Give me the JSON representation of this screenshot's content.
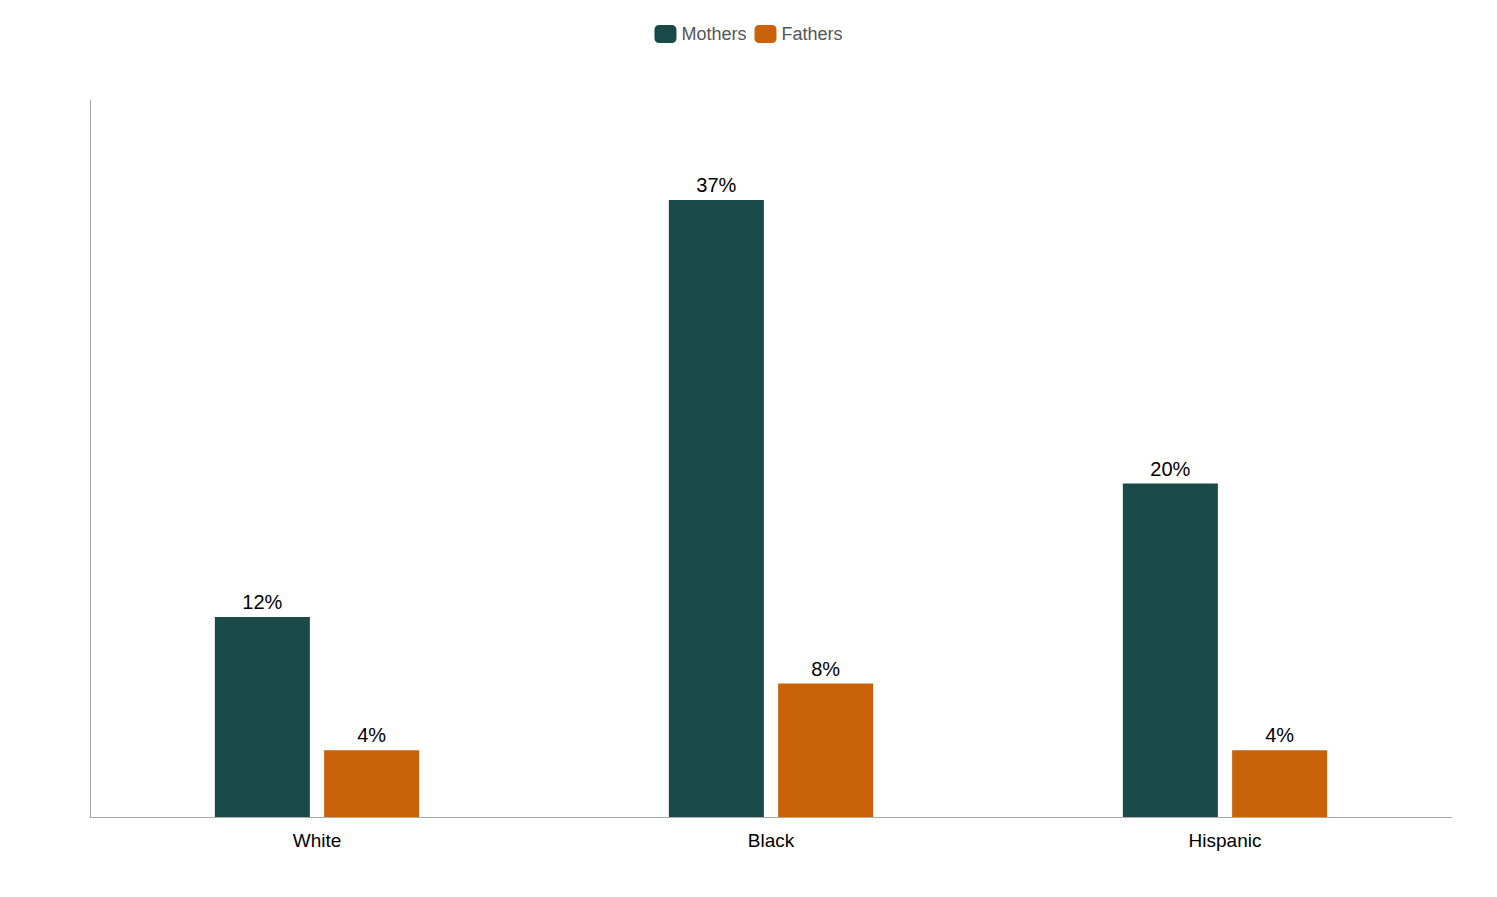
{
  "chart_data": {
    "type": "bar",
    "categories": [
      "White",
      "Black",
      "Hispanic"
    ],
    "series": [
      {
        "name": "Mothers",
        "color": "#1a4a47",
        "values": [
          12,
          37,
          20
        ],
        "value_labels": [
          "12%",
          "37%",
          "20%"
        ]
      },
      {
        "name": "Fathers",
        "color": "#c9620a",
        "values": [
          4,
          8,
          4
        ],
        "value_labels": [
          "4%",
          "8%",
          "4%"
        ]
      }
    ],
    "ylim": [
      0,
      43
    ],
    "grid": false,
    "legend": "top",
    "data_labels": true,
    "tick_labels": "x"
  }
}
